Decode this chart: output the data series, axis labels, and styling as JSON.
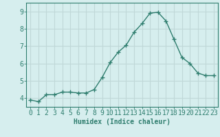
{
  "x": [
    0,
    1,
    2,
    3,
    4,
    5,
    6,
    7,
    8,
    9,
    10,
    11,
    12,
    13,
    14,
    15,
    16,
    17,
    18,
    19,
    20,
    21,
    22,
    23
  ],
  "y": [
    3.9,
    3.8,
    4.2,
    4.2,
    4.35,
    4.35,
    4.3,
    4.3,
    4.5,
    5.2,
    6.05,
    6.65,
    7.05,
    7.8,
    8.3,
    8.9,
    8.95,
    8.45,
    7.4,
    6.35,
    6.0,
    5.45,
    5.3,
    5.3
  ],
  "line_color": "#2E7D6E",
  "marker": "+",
  "marker_size": 4,
  "marker_linewidth": 1.0,
  "line_width": 1.0,
  "bg_color": "#D6EEEE",
  "grid_color": "#C0D8D8",
  "axis_color": "#2E7D6E",
  "xlabel": "Humidex (Indice chaleur)",
  "xlabel_fontsize": 7,
  "tick_fontsize": 7,
  "ylim": [
    3.5,
    9.5
  ],
  "xlim": [
    -0.5,
    23.5
  ],
  "yticks": [
    4,
    5,
    6,
    7,
    8,
    9
  ],
  "xticks": [
    0,
    1,
    2,
    3,
    4,
    5,
    6,
    7,
    8,
    9,
    10,
    11,
    12,
    13,
    14,
    15,
    16,
    17,
    18,
    19,
    20,
    21,
    22,
    23
  ]
}
